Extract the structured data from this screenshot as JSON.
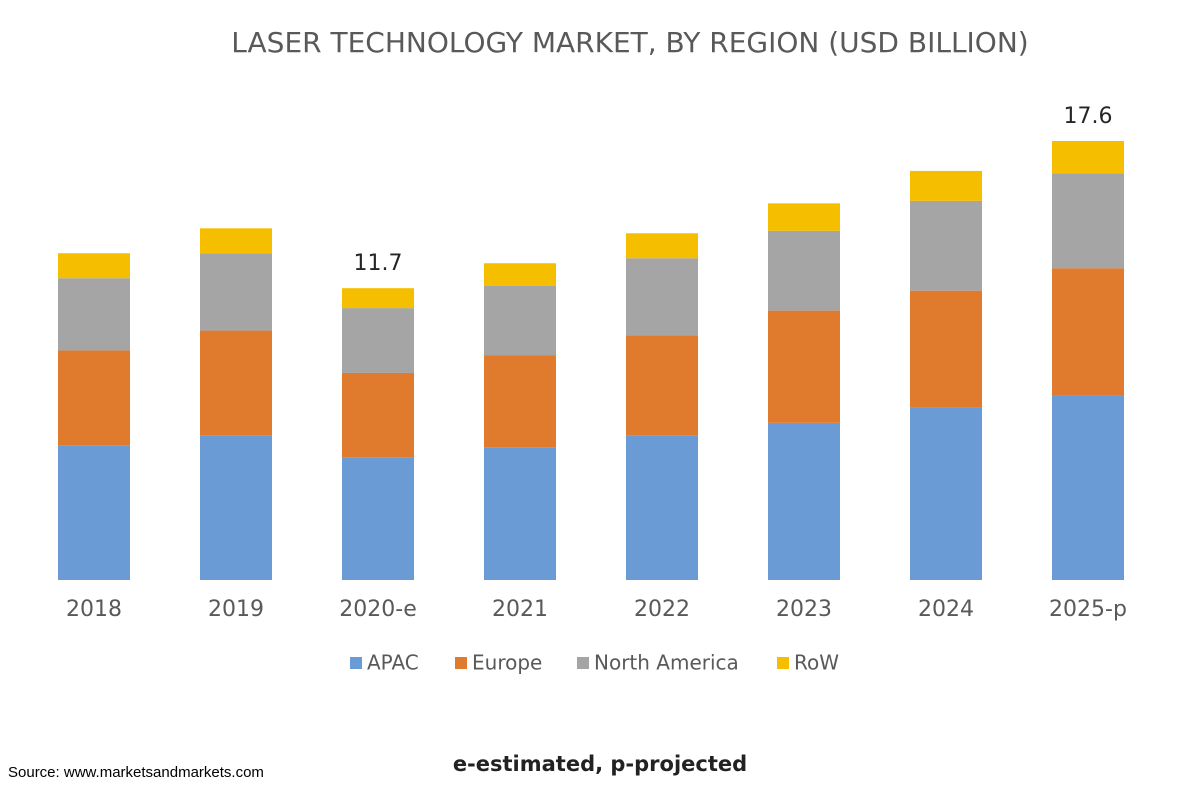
{
  "chart_data": {
    "type": "stacked_bar",
    "title": "LASER TECHNOLOGY MARKET, BY REGION (USD  BILLION)",
    "categories": [
      "2018",
      "2019",
      "2020-e",
      "2021",
      "2022",
      "2023",
      "2024",
      "2025-p"
    ],
    "series": [
      {
        "name": "APAC",
        "color": "#6a9bd5",
        "values": [
          5.4,
          5.8,
          4.9,
          5.3,
          5.8,
          6.3,
          6.9,
          7.4
        ]
      },
      {
        "name": "Europe",
        "color": "#e07b2e",
        "values": [
          3.8,
          4.2,
          3.4,
          3.7,
          4.0,
          4.5,
          4.7,
          5.1
        ]
      },
      {
        "name": "North America",
        "color": "#a5a5a5",
        "values": [
          2.9,
          3.1,
          2.6,
          2.8,
          3.1,
          3.2,
          3.6,
          3.8
        ]
      },
      {
        "name": "RoW",
        "color": "#f5bf00",
        "values": [
          1.0,
          1.0,
          0.8,
          0.9,
          1.0,
          1.1,
          1.2,
          1.3
        ]
      }
    ],
    "annotations": [
      {
        "category": "2020-e",
        "value": 11.7
      },
      {
        "category": "2025-p",
        "value": 17.6
      }
    ],
    "legend": "bottom",
    "footnote": "e-estimated, p-projected",
    "source": "Source: www.marketsandmarkets.com"
  }
}
